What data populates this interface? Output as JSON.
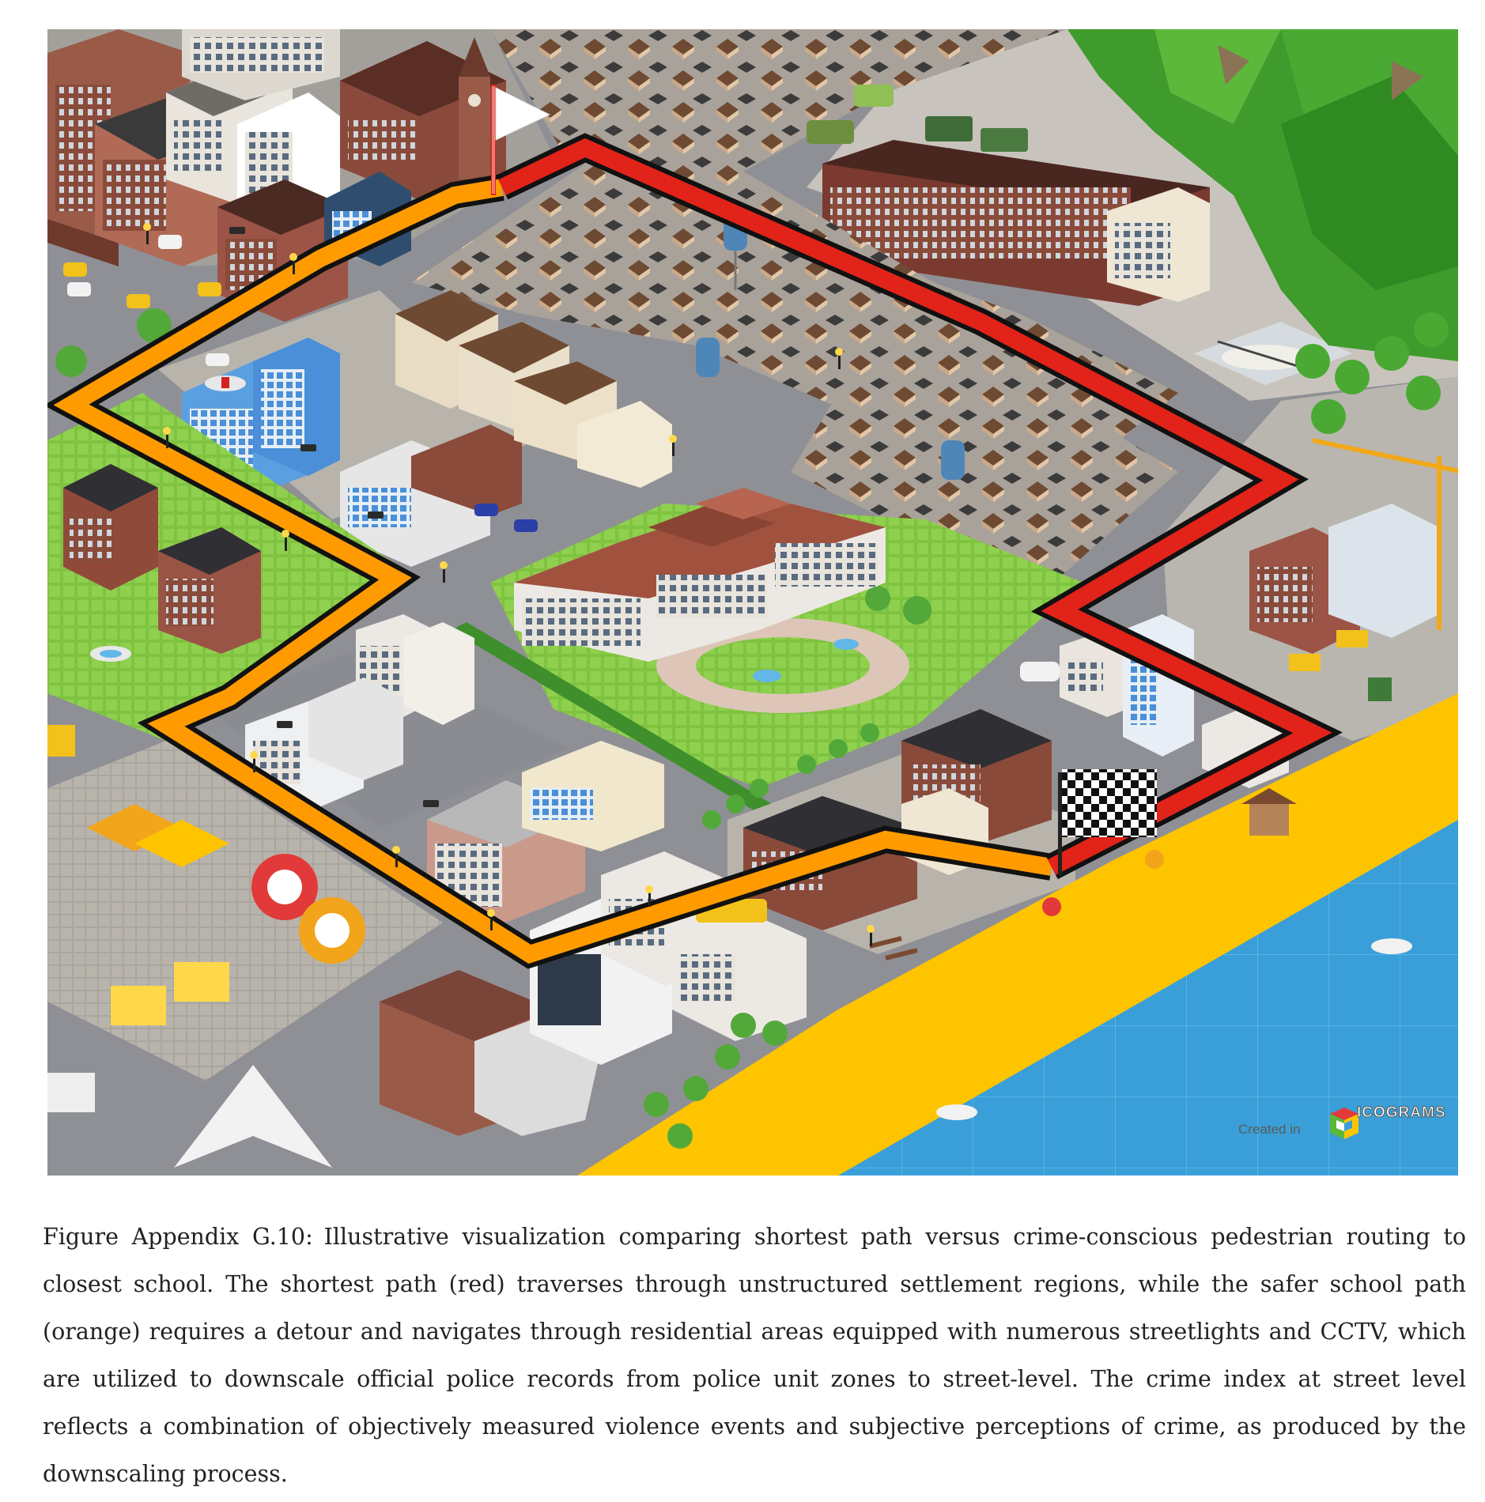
{
  "figure": {
    "label": "Figure Appendix  G.10:",
    "caption": "Illustrative visualization comparing shortest path versus crime-conscious pedestrian routing to closest school. The shortest path (red) traverses through unstructured settlement regions, while the safer school path (orange) requires a detour and navigates through residential areas equipped with numerous streetlights and CCTV, which are utilized to downscale official police records from police unit zones to street-level. The crime index at street level reflects a combination of objectively measured violence events and subjective perceptions of crime, as produced by the downscaling process.",
    "watermark": {
      "prefix": "Created in",
      "brand": "ICOGRAMS"
    }
  },
  "colors": {
    "shortest_path": "#e2231a",
    "safer_path": "#ff9b00",
    "road": "#8c8d93",
    "grass": "#7fc341",
    "water": "#3a9fd8",
    "sand": "#ffc400",
    "roof_red": "#8a3b2e",
    "roof_dark": "#3a3a3a"
  },
  "icons": [
    "start-flag-icon",
    "finish-flag-icon",
    "streetlight-icon",
    "cctv-camera-icon",
    "icograms-logo-icon"
  ]
}
